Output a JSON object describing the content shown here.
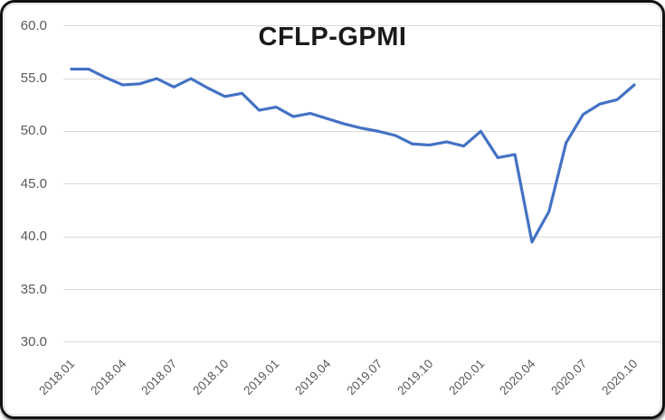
{
  "card": {
    "title": "CFLP-GPMI"
  },
  "chart_data": {
    "type": "line",
    "title": "CFLP-GPMI",
    "x": [
      "2018.01",
      "2018.02",
      "2018.03",
      "2018.04",
      "2018.05",
      "2018.06",
      "2018.07",
      "2018.08",
      "2018.09",
      "2018.10",
      "2018.11",
      "2018.12",
      "2019.01",
      "2019.02",
      "2019.03",
      "2019.04",
      "2019.05",
      "2019.06",
      "2019.07",
      "2019.08",
      "2019.09",
      "2019.10",
      "2019.11",
      "2019.12",
      "2020.01",
      "2020.02",
      "2020.03",
      "2020.04",
      "2020.05",
      "2020.06",
      "2020.07",
      "2020.08",
      "2020.09",
      "2020.10"
    ],
    "series": [
      {
        "name": "CFLP-GPMI",
        "color": "#4472C4",
        "values": [
          55.9,
          55.9,
          55.1,
          54.4,
          54.5,
          55.0,
          54.2,
          55.0,
          54.1,
          53.3,
          53.6,
          52.0,
          52.3,
          51.4,
          51.7,
          51.2,
          50.7,
          50.3,
          50.0,
          49.6,
          48.8,
          48.7,
          49.0,
          48.6,
          50.0,
          47.5,
          47.8,
          39.5,
          42.4,
          48.9,
          51.6,
          52.6,
          53.0,
          54.4
        ]
      }
    ],
    "xlabel": "",
    "ylabel": "",
    "ylim": [
      30,
      60
    ],
    "yticks": [
      60,
      55,
      50,
      45,
      40,
      35,
      30
    ],
    "ytick_labels": [
      "60.0",
      "55.0",
      "50.0",
      "45.0",
      "40.0",
      "35.0",
      "30.0"
    ],
    "xtick_labels": [
      "2018.01",
      "2018.04",
      "2018.07",
      "2018.10",
      "2019.01",
      "2019.04",
      "2019.07",
      "2019.10",
      "2020.01",
      "2020.04",
      "2020.07",
      "2020.10"
    ],
    "grid": "horizontal",
    "legend_position": "none",
    "axis_label_color": "#595959",
    "gridline_color": "#D9D9D9",
    "title_color": "#1a1a1a"
  }
}
